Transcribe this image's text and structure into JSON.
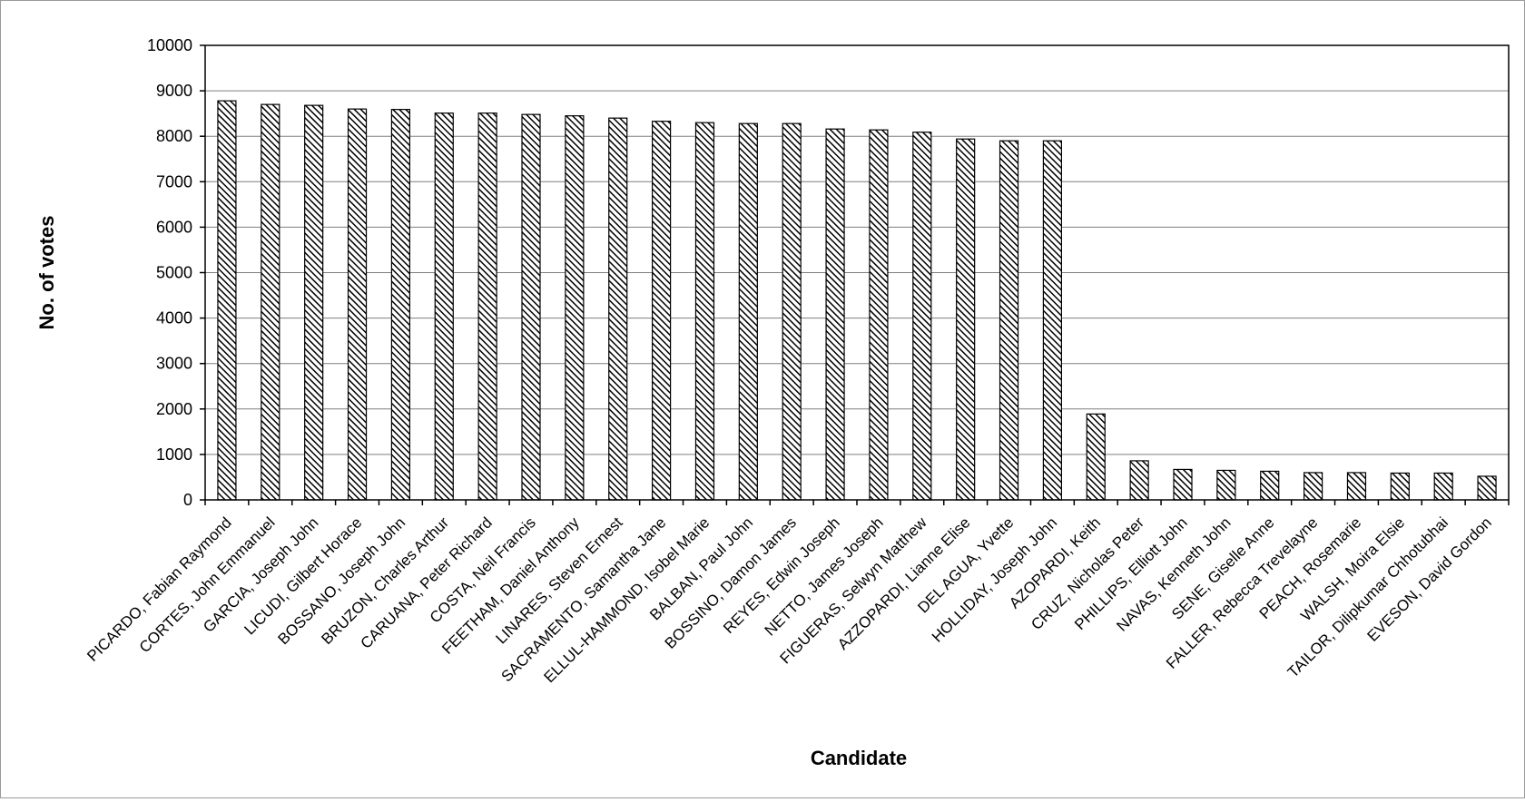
{
  "chart_data": {
    "type": "bar",
    "title": "",
    "xlabel": "Candidate",
    "ylabel": "No. of votes",
    "ylim": [
      0,
      10000
    ],
    "yticks": [
      0,
      1000,
      2000,
      3000,
      4000,
      5000,
      6000,
      7000,
      8000,
      9000,
      10000
    ],
    "grid": true,
    "legend": "none",
    "bar_pattern": "diagonal-hatch",
    "colors": {
      "bar_fill": "#ffffff",
      "hatch": "#000000",
      "grid": "#7f7f7f",
      "axis": "#000000"
    },
    "categories": [
      "PICARDO, Fabian Raymond",
      "CORTES, John Emmanuel",
      "GARCIA, Joseph John",
      "LICUDI, Gilbert Horace",
      "BOSSANO, Joseph John",
      "BRUZON, Charles Arthur",
      "CARUANA, Peter Richard",
      "COSTA, Neil Francis",
      "FEETHAM, Daniel Anthony",
      "LINARES, Steven Ernest",
      "SACRAMENTO, Samantha Jane",
      "ELLUL-HAMMOND, Isobel Marie",
      "BALBAN, Paul John",
      "BOSSINO, Damon James",
      "REYES, Edwin Joseph",
      "NETTO, James Joseph",
      "FIGUERAS, Selwyn Matthew",
      "AZZOPARDI, Lianne Elise",
      "DEL AGUA, Yvette",
      "HOLLIDAY, Joseph John",
      "AZOPARDI, Keith",
      "CRUZ, Nicholas Peter",
      "PHILLIPS, Elliott John",
      "NAVAS, Kenneth John",
      "SENE, Giselle Anne",
      "FALLER, Rebecca Trevelayne",
      "PEACH, Rosemarie",
      "WALSH, Moira Elsie",
      "TAILOR, Dilipkumar Chhotubhai",
      "EVESON, David Gordon"
    ],
    "values": [
      8780,
      8700,
      8680,
      8600,
      8590,
      8510,
      8510,
      8480,
      8450,
      8400,
      8330,
      8300,
      8280,
      8280,
      8160,
      8140,
      8090,
      7940,
      7900,
      7900,
      1890,
      860,
      670,
      650,
      630,
      600,
      600,
      590,
      590,
      520
    ]
  }
}
